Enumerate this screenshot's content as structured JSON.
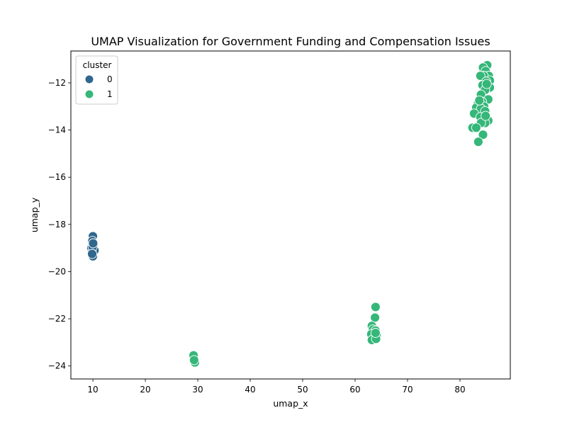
{
  "chart_data": {
    "type": "scatter",
    "title": "UMAP Visualization for Government Funding and Compensation Issues",
    "xlabel": "umap_x",
    "ylabel": "umap_y",
    "xlim": [
      5.8,
      89.6
    ],
    "ylim": [
      -24.55,
      -10.65
    ],
    "xticks": [
      10,
      20,
      30,
      40,
      50,
      60,
      70,
      80
    ],
    "yticks": [
      -24,
      -22,
      -20,
      -18,
      -16,
      -14,
      -12
    ],
    "grid": false,
    "legend": {
      "title": "cluster",
      "placement": "top-left",
      "entries": [
        {
          "label": "0",
          "color": "#30678d"
        },
        {
          "label": "1",
          "color": "#35b779"
        }
      ]
    },
    "series": [
      {
        "name": "0",
        "color": "#30678d",
        "points": [
          [
            10.0,
            -18.5
          ],
          [
            9.9,
            -18.7
          ],
          [
            10.1,
            -18.9
          ],
          [
            9.7,
            -19.0
          ],
          [
            10.3,
            -19.1
          ],
          [
            9.8,
            -19.2
          ],
          [
            10.0,
            -19.35
          ],
          [
            9.95,
            -18.95
          ],
          [
            10.05,
            -18.8
          ],
          [
            9.85,
            -19.25
          ]
        ]
      },
      {
        "name": "1",
        "color": "#35b779",
        "points": [
          [
            29.2,
            -23.55
          ],
          [
            29.45,
            -23.85
          ],
          [
            29.3,
            -23.75
          ],
          [
            63.9,
            -21.5
          ],
          [
            63.8,
            -21.95
          ],
          [
            63.2,
            -22.3
          ],
          [
            63.4,
            -22.45
          ],
          [
            63.9,
            -22.5
          ],
          [
            63.1,
            -22.65
          ],
          [
            64.1,
            -22.7
          ],
          [
            63.2,
            -22.9
          ],
          [
            64.0,
            -22.85
          ],
          [
            63.9,
            -22.6
          ],
          [
            85.2,
            -11.25
          ],
          [
            84.4,
            -11.35
          ],
          [
            84.9,
            -11.5
          ],
          [
            85.5,
            -11.7
          ],
          [
            84.5,
            -11.7
          ],
          [
            83.9,
            -11.7
          ],
          [
            85.7,
            -11.9
          ],
          [
            85.0,
            -11.95
          ],
          [
            84.3,
            -12.1
          ],
          [
            85.7,
            -12.2
          ],
          [
            84.8,
            -12.3
          ],
          [
            85.1,
            -12.05
          ],
          [
            84.0,
            -12.5
          ],
          [
            85.4,
            -12.7
          ],
          [
            84.2,
            -12.8
          ],
          [
            83.4,
            -12.9
          ],
          [
            84.6,
            -13.0
          ],
          [
            83.1,
            -13.05
          ],
          [
            84.0,
            -13.1
          ],
          [
            84.8,
            -13.2
          ],
          [
            82.7,
            -13.3
          ],
          [
            83.9,
            -13.45
          ],
          [
            85.4,
            -13.6
          ],
          [
            84.8,
            -13.7
          ],
          [
            84.0,
            -13.7
          ],
          [
            82.4,
            -13.9
          ],
          [
            83.1,
            -13.9
          ],
          [
            84.4,
            -14.2
          ],
          [
            83.5,
            -14.5
          ],
          [
            84.9,
            -13.4
          ],
          [
            83.7,
            -12.75
          ]
        ]
      }
    ]
  }
}
